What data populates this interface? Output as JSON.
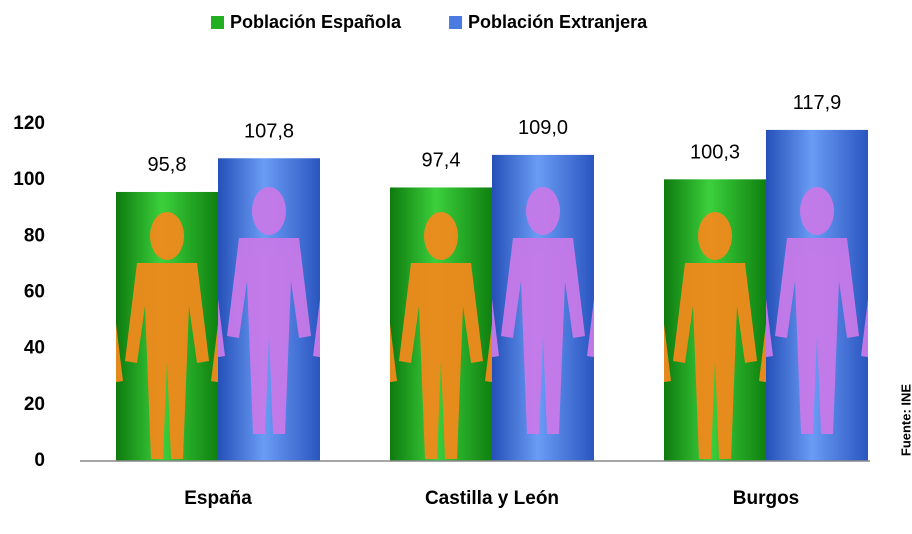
{
  "chart_data": {
    "type": "bar",
    "categories": [
      "España",
      "Castilla y León",
      "Burgos"
    ],
    "series": [
      {
        "name": "Población Española",
        "color": "#22b022",
        "values": [
          95.8,
          97.4,
          100.3
        ],
        "value_labels": [
          "95,8",
          "97,4",
          "100,3"
        ]
      },
      {
        "name": "Población Extranjera",
        "color": "#4a7be0",
        "values": [
          107.8,
          109.0,
          117.9
        ],
        "value_labels": [
          "107,8",
          "109,0",
          "117,9"
        ]
      }
    ],
    "ylim": [
      0,
      120
    ],
    "yticks": [
      0,
      20,
      40,
      60,
      80,
      100,
      120
    ],
    "grid": false,
    "legend": "top",
    "source": "Fuente: INE"
  }
}
